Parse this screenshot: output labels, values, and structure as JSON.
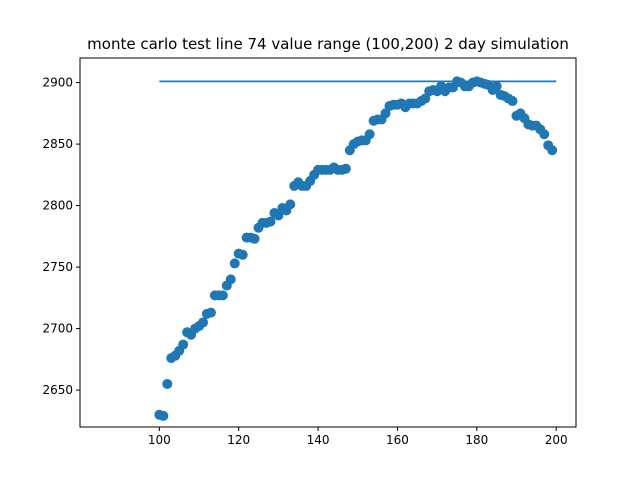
{
  "chart_data": {
    "type": "scatter",
    "title": "monte carlo test line 74 value range (100,200) 2 day simulation",
    "xlabel": "",
    "ylabel": "",
    "xlim": [
      80,
      205
    ],
    "ylim": [
      2620,
      2920
    ],
    "xticks": [
      100,
      120,
      140,
      160,
      180,
      200
    ],
    "yticks": [
      2650,
      2700,
      2750,
      2800,
      2850,
      2900
    ],
    "grid": false,
    "line": {
      "y": 2901,
      "x_start": 100,
      "x_end": 200,
      "color": "#1f77b4"
    },
    "marker_color": "#1f77b4",
    "points": [
      [
        100,
        2630
      ],
      [
        101,
        2629
      ],
      [
        102,
        2655
      ],
      [
        103,
        2676
      ],
      [
        104,
        2678
      ],
      [
        105,
        2682
      ],
      [
        106,
        2687
      ],
      [
        107,
        2697
      ],
      [
        108,
        2695
      ],
      [
        109,
        2700
      ],
      [
        110,
        2702
      ],
      [
        111,
        2705
      ],
      [
        112,
        2712
      ],
      [
        113,
        2713
      ],
      [
        114,
        2727
      ],
      [
        115,
        2727
      ],
      [
        116,
        2727
      ],
      [
        117,
        2735
      ],
      [
        118,
        2740
      ],
      [
        119,
        2753
      ],
      [
        120,
        2761
      ],
      [
        121,
        2760
      ],
      [
        122,
        2774
      ],
      [
        123,
        2774
      ],
      [
        124,
        2773
      ],
      [
        125,
        2782
      ],
      [
        126,
        2786
      ],
      [
        127,
        2786
      ],
      [
        128,
        2787
      ],
      [
        129,
        2794
      ],
      [
        130,
        2792
      ],
      [
        131,
        2798
      ],
      [
        132,
        2796
      ],
      [
        133,
        2801
      ],
      [
        134,
        2816
      ],
      [
        135,
        2819
      ],
      [
        136,
        2816
      ],
      [
        137,
        2816
      ],
      [
        138,
        2820
      ],
      [
        139,
        2825
      ],
      [
        140,
        2829
      ],
      [
        141,
        2829
      ],
      [
        142,
        2829
      ],
      [
        143,
        2829
      ],
      [
        144,
        2831
      ],
      [
        145,
        2829
      ],
      [
        146,
        2829
      ],
      [
        147,
        2830
      ],
      [
        148,
        2845
      ],
      [
        149,
        2850
      ],
      [
        150,
        2852
      ],
      [
        151,
        2853
      ],
      [
        152,
        2853
      ],
      [
        153,
        2858
      ],
      [
        154,
        2869
      ],
      [
        155,
        2870
      ],
      [
        156,
        2870
      ],
      [
        157,
        2875
      ],
      [
        158,
        2881
      ],
      [
        159,
        2882
      ],
      [
        160,
        2882
      ],
      [
        161,
        2883
      ],
      [
        162,
        2880
      ],
      [
        163,
        2883
      ],
      [
        164,
        2883
      ],
      [
        165,
        2883
      ],
      [
        166,
        2885
      ],
      [
        167,
        2887
      ],
      [
        168,
        2893
      ],
      [
        169,
        2894
      ],
      [
        170,
        2893
      ],
      [
        171,
        2897
      ],
      [
        172,
        2893
      ],
      [
        173,
        2896
      ],
      [
        174,
        2896
      ],
      [
        175,
        2901
      ],
      [
        176,
        2900
      ],
      [
        177,
        2897
      ],
      [
        178,
        2897
      ],
      [
        179,
        2900
      ],
      [
        180,
        2901
      ],
      [
        181,
        2900
      ],
      [
        182,
        2899
      ],
      [
        183,
        2898
      ],
      [
        184,
        2894
      ],
      [
        185,
        2897
      ],
      [
        186,
        2890
      ],
      [
        187,
        2889
      ],
      [
        188,
        2887
      ],
      [
        189,
        2885
      ],
      [
        190,
        2873
      ],
      [
        191,
        2875
      ],
      [
        192,
        2871
      ],
      [
        193,
        2866
      ],
      [
        194,
        2865
      ],
      [
        195,
        2865
      ],
      [
        196,
        2862
      ],
      [
        197,
        2858
      ],
      [
        198,
        2849
      ],
      [
        199,
        2845
      ]
    ]
  }
}
